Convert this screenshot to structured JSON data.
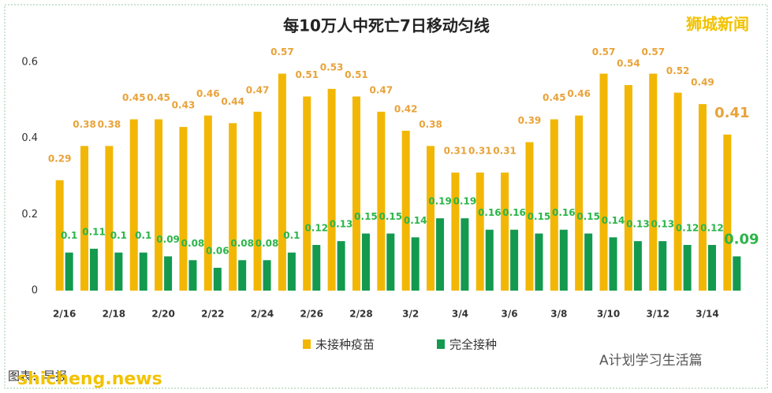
{
  "chart_data": {
    "type": "bar",
    "title": "每10万人中死亡7日移动匀线",
    "categories": [
      "2/16",
      null,
      "2/18",
      null,
      "2/20",
      null,
      "2/22",
      null,
      "2/24",
      null,
      "2/26",
      null,
      "2/28",
      null,
      "3/2",
      null,
      "3/4",
      null,
      "3/6",
      null,
      "3/8",
      null,
      "3/10",
      null,
      "3/12",
      null,
      "3/14",
      null
    ],
    "series": [
      {
        "name": "未接种疫苗",
        "color": "#f2b705",
        "values": [
          0.29,
          0.38,
          0.38,
          0.45,
          0.45,
          0.43,
          0.46,
          0.44,
          0.47,
          0.57,
          0.51,
          0.53,
          0.51,
          0.47,
          0.42,
          0.38,
          0.31,
          0.31,
          0.31,
          0.39,
          0.45,
          0.46,
          0.57,
          0.54,
          0.57,
          0.52,
          0.49,
          0.41
        ]
      },
      {
        "name": "完全接种",
        "color": "#139a4f",
        "values": [
          0.1,
          0.11,
          0.1,
          0.1,
          0.09,
          0.08,
          0.06,
          0.08,
          0.08,
          0.1,
          0.12,
          0.13,
          0.15,
          0.15,
          0.14,
          0.19,
          0.19,
          0.16,
          0.16,
          0.15,
          0.16,
          0.15,
          0.14,
          0.13,
          0.13,
          0.12,
          0.12,
          0.09
        ]
      }
    ],
    "ylim": [
      0,
      0.6
    ],
    "yticks": [
      0,
      0.2,
      0.4,
      0.6
    ],
    "grid": false,
    "legend": "bottom",
    "watermarks": [
      "狮城新闻",
      "图表：早报",
      "shicheng.news",
      "A计划学习生活篇"
    ]
  }
}
